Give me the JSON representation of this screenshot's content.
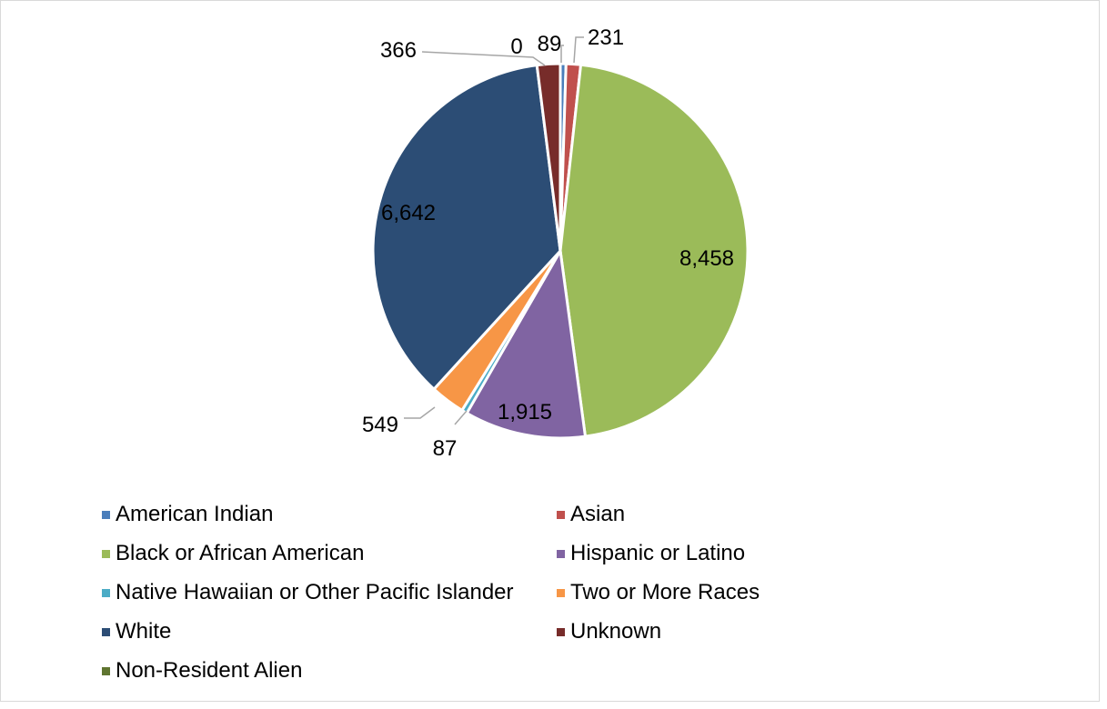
{
  "chart_data": {
    "type": "pie",
    "title": "",
    "slices": [
      {
        "label": "American Indian",
        "value": 89,
        "color": "#4A7EBB",
        "data_label": "89"
      },
      {
        "label": "Asian",
        "value": 231,
        "color": "#C0504D",
        "data_label": "231"
      },
      {
        "label": "Black or African American",
        "value": 8458,
        "color": "#9BBB59",
        "data_label": "8,458"
      },
      {
        "label": "Hispanic or Latino",
        "value": 1915,
        "color": "#8064A2",
        "data_label": "1,915"
      },
      {
        "label": "Native Hawaiian or Other Pacific Islander",
        "value": 87,
        "color": "#4BACC6",
        "data_label": "87"
      },
      {
        "label": "Two or More Races",
        "value": 549,
        "color": "#F79646",
        "data_label": "549"
      },
      {
        "label": "White",
        "value": 6642,
        "color": "#2C4D75",
        "data_label": "6,642"
      },
      {
        "label": "Unknown",
        "value": 366,
        "color": "#772C2A",
        "data_label": "366"
      },
      {
        "label": "Non-Resident Alien",
        "value": 0,
        "color": "#5F7530",
        "data_label": "0"
      }
    ],
    "legend_position": "bottom"
  }
}
